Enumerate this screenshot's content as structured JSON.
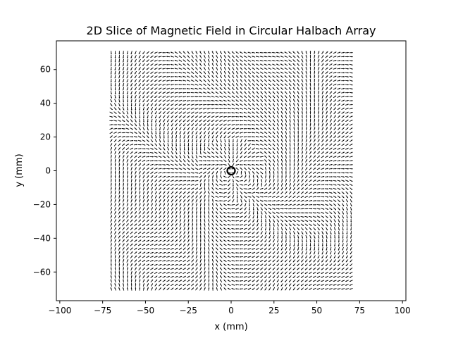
{
  "chart_data": {
    "type": "quiver",
    "title": "2D Slice of Magnetic Field in Circular Halbach Array",
    "xlabel": "x (mm)",
    "ylabel": "y (mm)",
    "xlim": [
      -102,
      102
    ],
    "ylim": [
      -77,
      77
    ],
    "xticks": [
      -100,
      -75,
      -50,
      -25,
      0,
      25,
      50,
      75,
      100
    ],
    "xtick_labels": [
      "−100",
      "−75",
      "−50",
      "−25",
      "0",
      "25",
      "50",
      "75",
      "100"
    ],
    "yticks": [
      -60,
      -40,
      -20,
      0,
      20,
      40,
      60
    ],
    "ytick_labels": [
      "−60",
      "−40",
      "−20",
      "0",
      "20",
      "40",
      "60"
    ],
    "grid": false,
    "legend": "none",
    "field": {
      "x_range": [
        -70,
        70
      ],
      "y_range": [
        -70,
        70
      ],
      "samples_per_axis": 60,
      "description_note": "dense field of small black arrows over the square region"
    },
    "marker": {
      "type": "circle",
      "x": 0,
      "y": 0,
      "shape": "hollow-circle",
      "color": "#000000"
    },
    "colors": {
      "arrow": "#000000",
      "axes": "#000000",
      "background": "#ffffff"
    }
  }
}
